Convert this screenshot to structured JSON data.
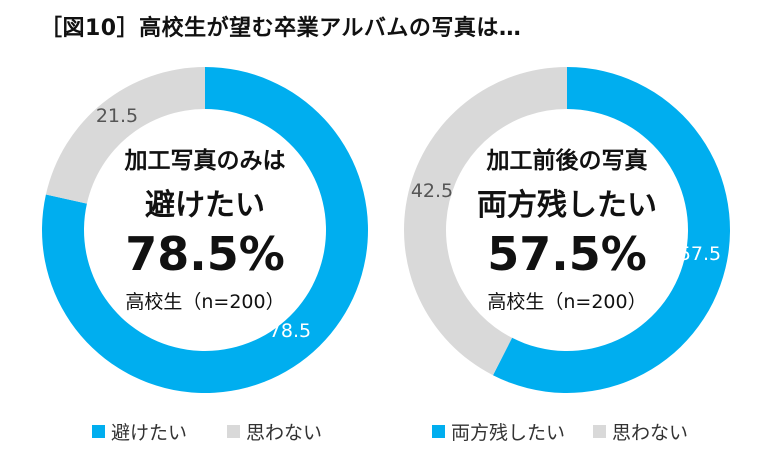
{
  "title": "［図10］高校生が望む卒業アルバムの写真は…",
  "colors": {
    "blue": "#00AEEF",
    "gray": "#D9D9D9"
  },
  "chart_data": [
    {
      "type": "pie",
      "donut": true,
      "slices": [
        {
          "label": "避けたい",
          "value": 78.5,
          "color": "#00AEEF"
        },
        {
          "label": "思わない",
          "value": 21.5,
          "color": "#D9D9D9"
        }
      ],
      "center_text": [
        "加工写真のみは",
        "避けたい",
        "78.5%",
        "高校生（n=200）"
      ],
      "legend": [
        "避けたい",
        "思わない"
      ],
      "legend_position": "bottom"
    },
    {
      "type": "pie",
      "donut": true,
      "slices": [
        {
          "label": "両方残したい",
          "value": 57.5,
          "color": "#00AEEF"
        },
        {
          "label": "思わない",
          "value": 42.5,
          "color": "#D9D9D9"
        }
      ],
      "center_text": [
        "加工前後の写真",
        "両方残したい",
        "57.5%",
        "高校生（n=200）"
      ],
      "legend": [
        "両方残したい",
        "思わない"
      ],
      "legend_position": "bottom"
    }
  ]
}
